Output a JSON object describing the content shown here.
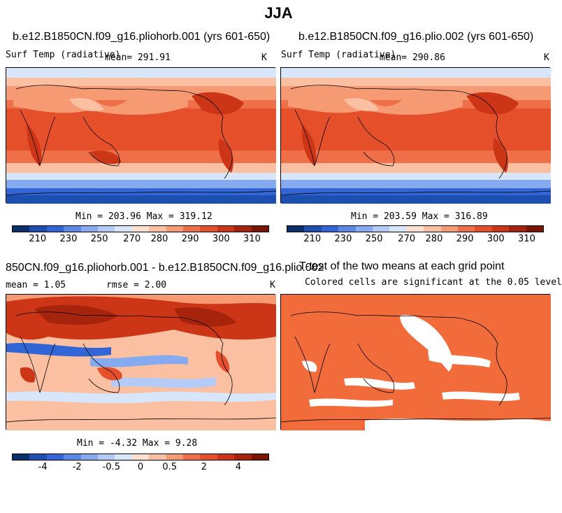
{
  "figure": {
    "title": "JJA"
  },
  "panels": [
    {
      "title": "b.e12.B1850CN.f09_g16.pliohorb.001 (yrs 601-650)",
      "left_label": "Surf Temp (radiative)",
      "mean_label": "mean= 291.91",
      "units": "K",
      "minmax": "Min = 203.96  Max = 319.12",
      "ticks": [
        "210",
        "230",
        "250",
        "270",
        "280",
        "290",
        "300",
        "310"
      ]
    },
    {
      "title": "b.e12.B1850CN.f09_g16.plio.002 (yrs 601-650)",
      "left_label": "Surf Temp (radiative)",
      "mean_label": "mean= 290.86",
      "units": "K",
      "minmax": "Min = 203.59  Max = 316.89",
      "ticks": [
        "210",
        "230",
        "250",
        "270",
        "280",
        "290",
        "300",
        "310"
      ]
    },
    {
      "title": "850CN.f09_g16.pliohorb.001 - b.e12.B1850CN.f09_g16.plio.002",
      "mean_label": "mean =    1.05",
      "rmse_label": "rmse =    2.00",
      "units": "K",
      "minmax": "Min =  -4.32  Max =    9.28",
      "ticks": [
        "-4",
        "-2",
        "-0.5",
        "0",
        "0.5",
        "2",
        "4"
      ]
    },
    {
      "title": "T-test of the two means at each grid point",
      "subtitle": "Colored cells are significant at the 0.05 level"
    }
  ],
  "colors": {
    "abs_scale": [
      "#08306b",
      "#1c4fb0",
      "#3266d6",
      "#5b8ae6",
      "#86aaf0",
      "#b3cbf6",
      "#d8e6fb",
      "#fde0cf",
      "#fbbfa1",
      "#f69a73",
      "#ef7048",
      "#e5502a",
      "#cc3516",
      "#a6230c",
      "#7a1404"
    ],
    "diff_scale": [
      "#08306b",
      "#1c4fb0",
      "#3266d6",
      "#5b8ae6",
      "#86aaf0",
      "#b3cbf6",
      "#d8e6fb",
      "#fde0cf",
      "#fbbfa1",
      "#f69a73",
      "#ef7048",
      "#e5502a",
      "#cc3516",
      "#a6230c",
      "#7a1404"
    ],
    "significant": "#f26b3a"
  }
}
